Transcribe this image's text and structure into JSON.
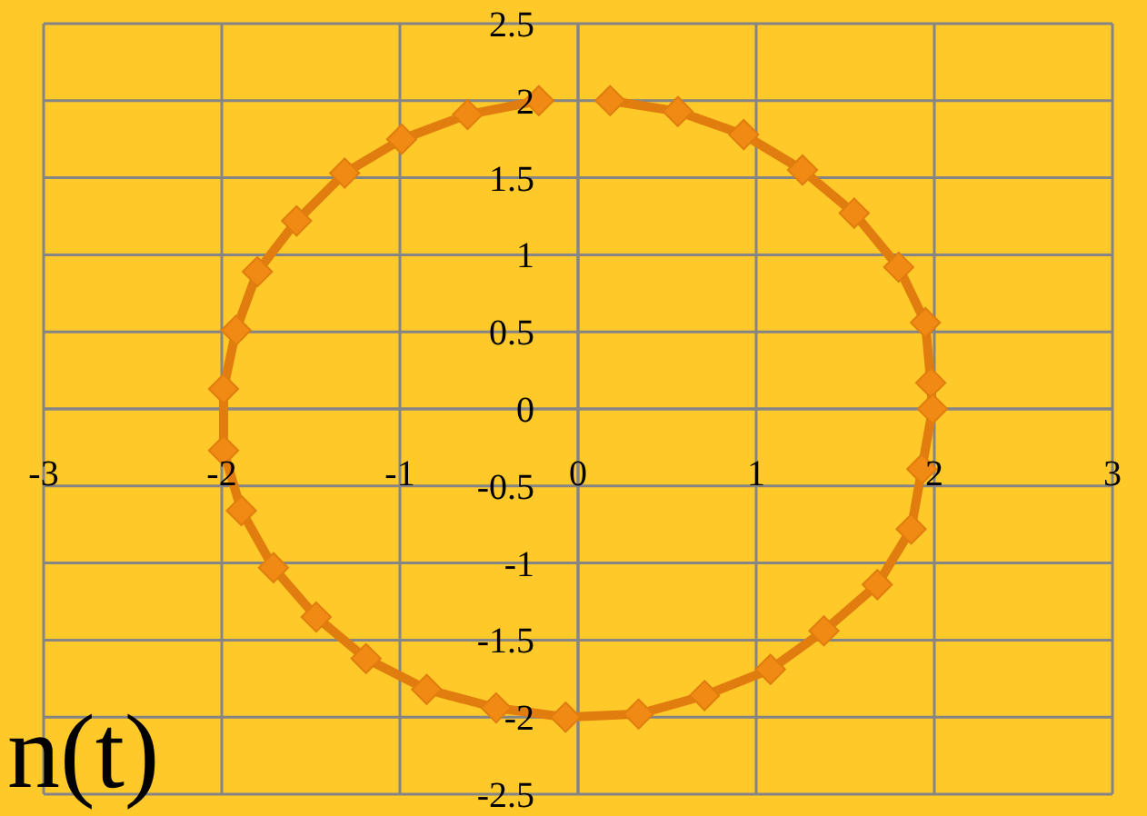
{
  "chart_data": {
    "type": "line",
    "marker": "diamond",
    "grid": true,
    "xlim": [
      -3,
      3
    ],
    "ylim": [
      -2.5,
      2.5
    ],
    "xticks": [
      -3,
      -2,
      -1,
      0,
      1,
      2,
      3
    ],
    "yticks": [
      2.5,
      2,
      1.5,
      1,
      0.5,
      0,
      -0.5,
      -1,
      -1.5,
      -2,
      -2.5
    ],
    "series": [
      {
        "color": "#e07d0e",
        "x": [
          0.18,
          0.56,
          0.93,
          1.26,
          1.55,
          1.8,
          1.95,
          1.98,
          1.99,
          1.93,
          1.87,
          1.68,
          1.38,
          1.08,
          0.71,
          0.34,
          -0.07,
          -0.46,
          -0.85,
          -1.19,
          -1.47,
          -1.71,
          -1.89,
          -1.99,
          -1.99,
          -1.92,
          -1.8,
          -1.58,
          -1.31,
          -0.99,
          -0.62,
          -0.22
        ],
        "values": [
          2.0,
          1.93,
          1.78,
          1.55,
          1.27,
          0.92,
          0.56,
          0.17,
          0.0,
          -0.39,
          -0.78,
          -1.14,
          -1.44,
          -1.69,
          -1.86,
          -1.98,
          -2.0,
          -1.94,
          -1.82,
          -1.62,
          -1.35,
          -1.03,
          -0.66,
          -0.27,
          0.13,
          0.51,
          0.89,
          1.22,
          1.53,
          1.75,
          1.91,
          2.0
        ]
      }
    ],
    "annotations": [
      "n(t)"
    ]
  }
}
